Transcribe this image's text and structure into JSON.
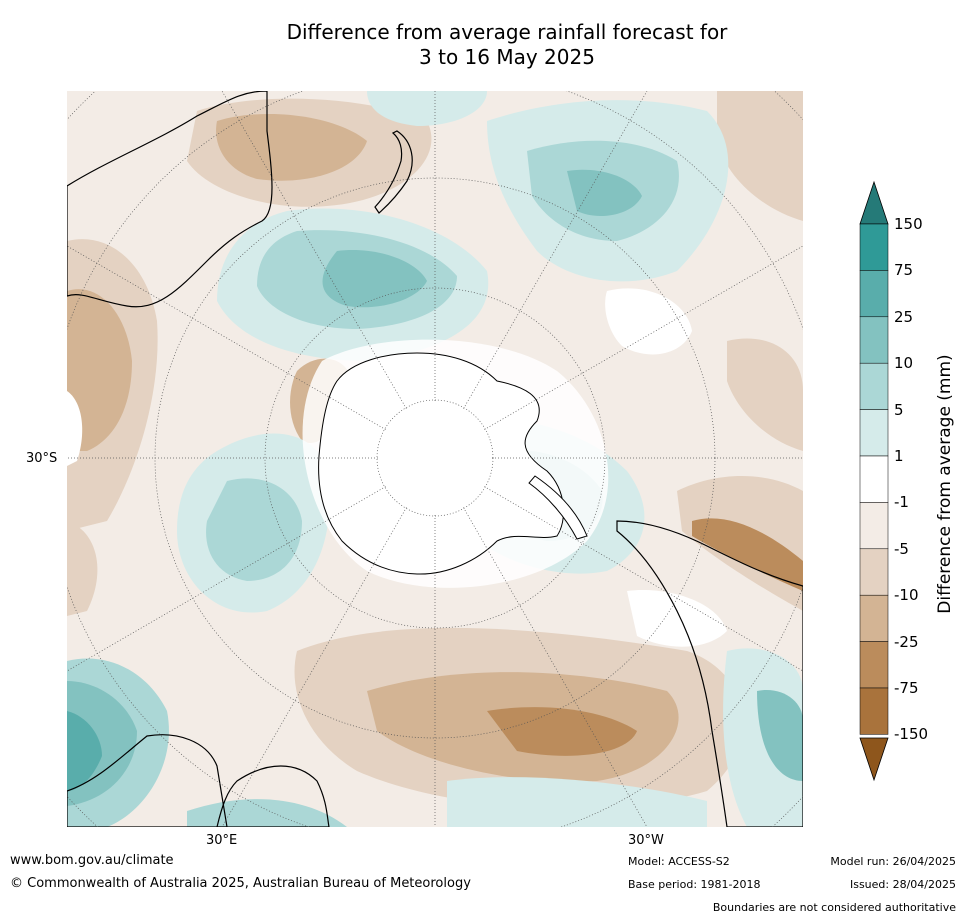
{
  "title_line1": "Difference from average rainfall forecast for",
  "title_line2": "3 to 16 May 2025",
  "map": {
    "lat_label": "30°S",
    "lon_labels": [
      "30°E",
      "30°W"
    ],
    "colors": {
      "land_outline": "#000000",
      "graticule": "#555555",
      "neutral": "#ffffff"
    }
  },
  "colorbar": {
    "label": "Difference from average (mm)",
    "ticks": [
      "150",
      "75",
      "25",
      "10",
      "5",
      "1",
      "-1",
      "-5",
      "-10",
      "-25",
      "-75",
      "-150"
    ],
    "colors": [
      "#257a78",
      "#2f9a97",
      "#59adab",
      "#83c2c0",
      "#abd7d6",
      "#d5ebea",
      "#ffffff",
      "#f3ece6",
      "#e4d2c2",
      "#d3b494",
      "#bb8c5c",
      "#a9733c",
      "#8e561c"
    ]
  },
  "footer": {
    "website": "www.bom.gov.au/climate",
    "copyright": "© Commonwealth of Australia 2025, Australian Bureau of Meteorology",
    "model": "Model: ACCESS-S2",
    "base_period": "Base period: 1981-2018",
    "model_run": "Model run: 26/04/2025",
    "issued": "Issued: 28/04/2025",
    "disclaimer": "Boundaries are not considered authoritative"
  }
}
